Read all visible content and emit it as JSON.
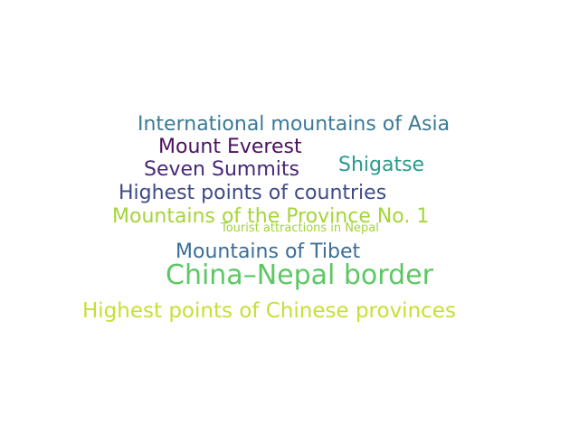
{
  "word_cloud": {
    "words": [
      {
        "text": "International mountains of Asia",
        "color": "#3b7a94"
      },
      {
        "text": "Mount Everest",
        "color": "#4a1060"
      },
      {
        "text": "Seven Summits",
        "color": "#482878"
      },
      {
        "text": "Shigatse",
        "color": "#2a9a8e"
      },
      {
        "text": "Highest points of countries",
        "color": "#3e4a89"
      },
      {
        "text": "Mountains of the Province No. 1",
        "color": "#a5d538"
      },
      {
        "text": "Tourist attractions in Nepal",
        "color": "#a0d23a"
      },
      {
        "text": "Mountains of Tibet",
        "color": "#3b6d95"
      },
      {
        "text": "China–Nepal border",
        "color": "#5cc863"
      },
      {
        "text": "Highest points of Chinese provinces",
        "color": "#c8df33"
      }
    ]
  }
}
